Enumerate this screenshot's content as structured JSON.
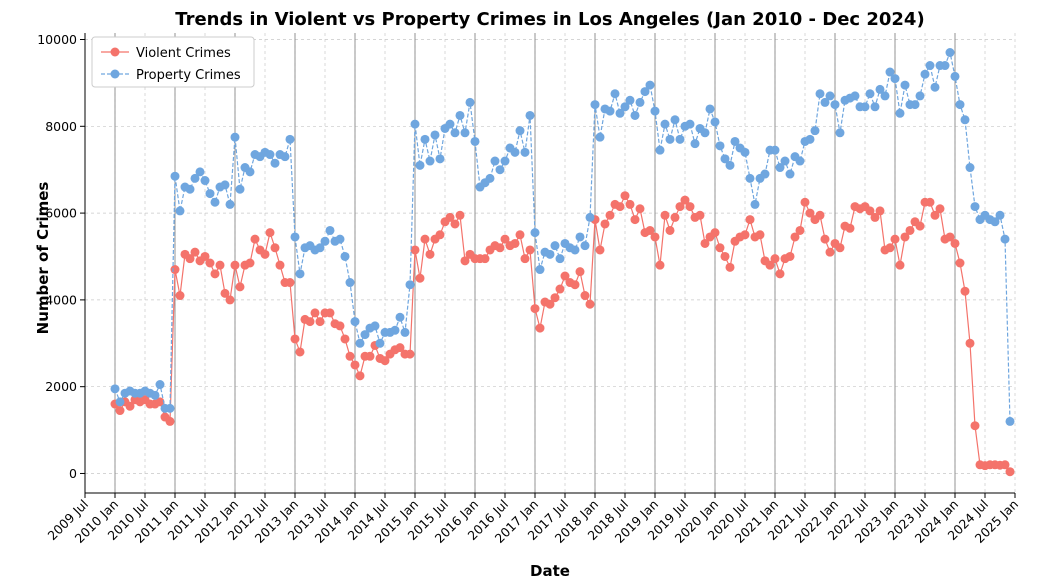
{
  "chart_data": {
    "type": "line",
    "title": "Trends in Violent vs Property Crimes in Los Angeles (Jan 2010 - Dec 2024)",
    "xlabel": "Date",
    "ylabel": "Number of Crimes",
    "x_range": [
      "2009-07",
      "2025-01"
    ],
    "ylim": [
      -450,
      10150
    ],
    "x_ticks": [
      "2009 Jul",
      "2010 Jan",
      "2010 Jul",
      "2011 Jan",
      "2011 Jul",
      "2012 Jan",
      "2012 Jul",
      "2013 Jan",
      "2013 Jul",
      "2014 Jan",
      "2014 Jul",
      "2015 Jan",
      "2015 Jul",
      "2016 Jan",
      "2016 Jul",
      "2017 Jan",
      "2017 Jul",
      "2018 Jan",
      "2018 Jul",
      "2019 Jan",
      "2019 Jul",
      "2020 Jan",
      "2020 Jul",
      "2021 Jan",
      "2021 Jul",
      "2022 Jan",
      "2022 Jul",
      "2023 Jan",
      "2023 Jul",
      "2024 Jan",
      "2024 Jul",
      "2025 Jan"
    ],
    "y_ticks": [
      0,
      2000,
      4000,
      6000,
      8000,
      10000
    ],
    "grid": true,
    "year_lines": true,
    "legend_position": "upper-left",
    "x_start": "2010-01",
    "series": [
      {
        "name": "Violent Crimes",
        "color": "#f4736b",
        "line_style": "solid",
        "values": [
          1600,
          1450,
          1650,
          1550,
          1700,
          1650,
          1700,
          1600,
          1600,
          1650,
          1300,
          1200,
          4700,
          4100,
          5050,
          4950,
          5100,
          4900,
          5000,
          4850,
          4600,
          4800,
          4150,
          4000,
          4800,
          4300,
          4800,
          4850,
          5400,
          5150,
          5050,
          5550,
          5200,
          4800,
          4400,
          4400,
          3100,
          2800,
          3550,
          3500,
          3700,
          3500,
          3700,
          3700,
          3450,
          3400,
          3100,
          2700,
          2500,
          2250,
          2700,
          2700,
          2950,
          2650,
          2600,
          2750,
          2850,
          2900,
          2750,
          2750,
          5150,
          4500,
          5400,
          5050,
          5400,
          5500,
          5800,
          5900,
          5750,
          5950,
          4900,
          5050,
          4950,
          4950,
          4950,
          5150,
          5250,
          5200,
          5400,
          5250,
          5300,
          5500,
          4950,
          5150,
          3800,
          3350,
          3950,
          3900,
          4050,
          4250,
          4550,
          4400,
          4350,
          4650,
          4100,
          3900,
          5850,
          5150,
          5750,
          5950,
          6200,
          6150,
          6400,
          6200,
          5850,
          6100,
          5550,
          5600,
          5450,
          4800,
          5950,
          5600,
          5900,
          6150,
          6300,
          6150,
          5900,
          5950,
          5300,
          5450,
          5550,
          5200,
          5000,
          4750,
          5350,
          5450,
          5500,
          5850,
          5450,
          5500,
          4900,
          4800,
          4950,
          4600,
          4950,
          5000,
          5450,
          5600,
          6250,
          6000,
          5850,
          5950,
          5400,
          5100,
          5300,
          5200,
          5700,
          5650,
          6150,
          6100,
          6150,
          6050,
          5900,
          6050,
          5150,
          5200,
          5400,
          4800,
          5450,
          5600,
          5800,
          5700,
          6250,
          6250,
          5950,
          6100,
          5400,
          5450,
          5300,
          4850,
          4200,
          3000,
          1100,
          200,
          180,
          200,
          200,
          190,
          200,
          40
        ]
      },
      {
        "name": "Property Crimes",
        "color": "#6fa6df",
        "line_style": "dashed",
        "values": [
          1950,
          1650,
          1850,
          1900,
          1850,
          1850,
          1900,
          1850,
          1800,
          2050,
          1500,
          1500,
          6850,
          6050,
          6600,
          6550,
          6800,
          6950,
          6750,
          6450,
          6250,
          6600,
          6650,
          6200,
          7750,
          6550,
          7050,
          6950,
          7350,
          7300,
          7400,
          7350,
          7150,
          7350,
          7300,
          7700,
          5450,
          4600,
          5200,
          5250,
          5150,
          5200,
          5350,
          5600,
          5350,
          5400,
          5000,
          4400,
          3500,
          3000,
          3200,
          3350,
          3400,
          3000,
          3250,
          3250,
          3300,
          3600,
          3250,
          4350,
          8050,
          7100,
          7700,
          7200,
          7800,
          7250,
          7950,
          8050,
          7850,
          8250,
          7850,
          8550,
          7650,
          6600,
          6700,
          6800,
          7200,
          7000,
          7200,
          7500,
          7400,
          7900,
          7400,
          8250,
          5550,
          4700,
          5100,
          5050,
          5250,
          4950,
          5300,
          5200,
          5150,
          5450,
          5250,
          5900,
          8500,
          7750,
          8400,
          8350,
          8750,
          8300,
          8450,
          8600,
          8250,
          8550,
          8800,
          8950,
          8350,
          7450,
          8050,
          7700,
          8150,
          7700,
          8000,
          8050,
          7600,
          7950,
          7850,
          8400,
          8100,
          7550,
          7250,
          7100,
          7650,
          7500,
          7400,
          6800,
          6200,
          6800,
          6900,
          7450,
          7450,
          7050,
          7200,
          6900,
          7300,
          7200,
          7650,
          7700,
          7900,
          8750,
          8550,
          8700,
          8500,
          7850,
          8600,
          8650,
          8700,
          8450,
          8450,
          8750,
          8450,
          8850,
          8700,
          9250,
          9100,
          8300,
          8950,
          8500,
          8500,
          8700,
          9200,
          9400,
          8900,
          9400,
          9400,
          9700,
          9150,
          8500,
          8150,
          7050,
          6150,
          5850,
          5950,
          5850,
          5800,
          5950,
          5400,
          1200
        ]
      }
    ]
  }
}
